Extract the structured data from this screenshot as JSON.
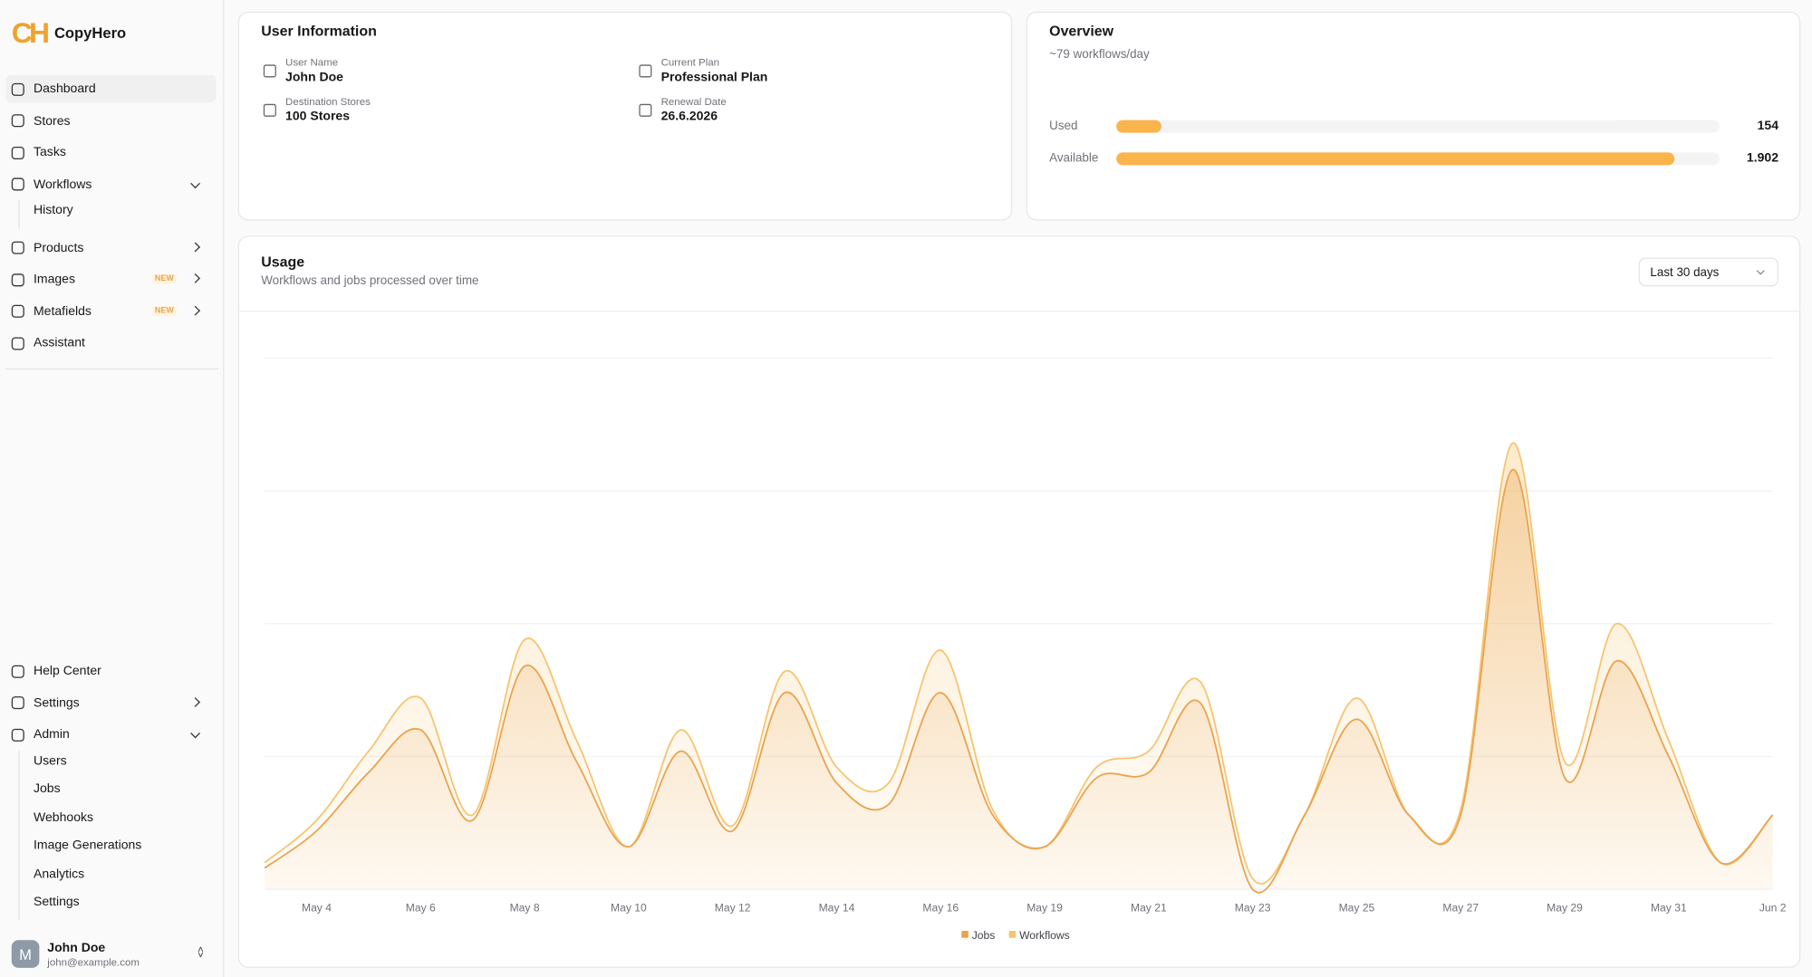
{
  "brand": {
    "logo_mark": "CH",
    "name": "CopyHero"
  },
  "sidebar": {
    "top": [
      {
        "label": "Dashboard",
        "active": true
      },
      {
        "label": "Stores"
      },
      {
        "label": "Tasks"
      },
      {
        "label": "Workflows",
        "chevron": "down",
        "children": [
          "History"
        ]
      },
      {
        "label": "Products",
        "chevron": "right"
      },
      {
        "label": "Images",
        "badge": "NEW",
        "chevron": "right"
      },
      {
        "label": "Metafields",
        "badge": "NEW",
        "chevron": "right"
      },
      {
        "label": "Assistant"
      }
    ],
    "bottom": [
      {
        "label": "Help Center"
      },
      {
        "label": "Settings",
        "chevron": "right"
      },
      {
        "label": "Admin",
        "chevron": "down",
        "children": [
          "Users",
          "Jobs",
          "Webhooks",
          "Image Generations",
          "Analytics",
          "Settings"
        ]
      }
    ],
    "user": {
      "avatar": "M",
      "name": "John Doe",
      "email": "john@example.com"
    }
  },
  "user_info": {
    "title": "User Information",
    "fields": [
      {
        "label": "User Name",
        "value": "John Doe"
      },
      {
        "label": "Current Plan",
        "value": "Professional Plan"
      },
      {
        "label": "Destination Stores",
        "value": "100 Stores"
      },
      {
        "label": "Renewal Date",
        "value": "26.6.2026"
      }
    ]
  },
  "overview": {
    "title": "Overview",
    "subtitle": "~79 workflows/day",
    "color": "#f9b44c",
    "bars": [
      {
        "label": "Used",
        "value": 154,
        "value_label": "154"
      },
      {
        "label": "Available",
        "value": 1902,
        "value_label": "1.902"
      }
    ]
  },
  "chart_data": {
    "type": "area",
    "title": "Usage",
    "subtitle": "Workflows and jobs processed over time",
    "range_selector": "Last 30 days",
    "categories": [
      null,
      "May 4",
      null,
      "May 6",
      null,
      "May 8",
      null,
      "May 10",
      null,
      "May 12",
      null,
      "May 14",
      null,
      "May 16",
      null,
      "May 19",
      null,
      "May 21",
      null,
      "May 23",
      null,
      "May 25",
      null,
      "May 27",
      null,
      "May 29",
      null,
      "May 31",
      null,
      "Jun 2"
    ],
    "series": [
      {
        "name": "Jobs",
        "color": "#e9a34f",
        "values": [
          4,
          11,
          22,
          30,
          13,
          42,
          24,
          8,
          26,
          11,
          37,
          20,
          16,
          37,
          14,
          8,
          21,
          22,
          35,
          0,
          14,
          32,
          14,
          14,
          79,
          21,
          43,
          25,
          5,
          14
        ]
      },
      {
        "name": "Workflows",
        "color": "#f6c46f",
        "values": [
          5,
          13,
          26,
          36,
          14,
          47,
          28,
          8,
          30,
          12,
          41,
          23,
          20,
          45,
          15,
          8,
          23,
          26,
          39,
          2,
          14,
          36,
          14,
          15,
          84,
          24,
          50,
          28,
          5,
          14
        ]
      }
    ],
    "ylim": [
      0,
      100
    ],
    "yticks": [
      0,
      25,
      50,
      75,
      100
    ],
    "grid": true
  }
}
